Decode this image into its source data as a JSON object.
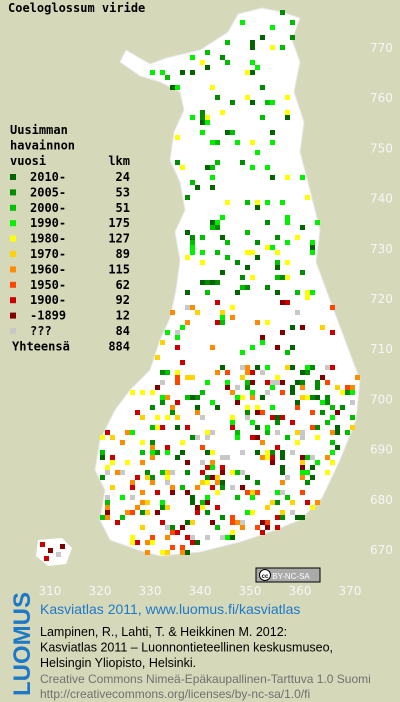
{
  "title": "Coeloglossum viride",
  "legend": {
    "heading": [
      "Uusimman",
      "havainnon",
      "vuosi"
    ],
    "count_heading": "lkm",
    "rows": [
      {
        "label": "2010-",
        "count": 24,
        "color": "#006400"
      },
      {
        "label": "2005-",
        "count": 53,
        "color": "#008c00"
      },
      {
        "label": "2000-",
        "count": 51,
        "color": "#00be00"
      },
      {
        "label": "1990-",
        "count": 175,
        "color": "#00f000"
      },
      {
        "label": "1980-",
        "count": 127,
        "color": "#ffff00"
      },
      {
        "label": "1970-",
        "count": 89,
        "color": "#ffd200"
      },
      {
        "label": "1960-",
        "count": 115,
        "color": "#ff8c00"
      },
      {
        "label": "1950-",
        "count": 62,
        "color": "#ff4600"
      },
      {
        "label": "1900-",
        "count": 92,
        "color": "#c80000"
      },
      {
        "label": "-1899",
        "count": 12,
        "color": "#800000"
      },
      {
        "label": "???",
        "count": 84,
        "color": "#c8c8c8"
      }
    ],
    "total_label": "Yhteensä",
    "total": 884
  },
  "axes": {
    "y_labels": [
      770,
      760,
      750,
      740,
      730,
      720,
      710,
      700,
      690,
      680,
      670
    ],
    "x_labels": [
      310,
      320,
      330,
      340,
      350,
      360,
      370
    ]
  },
  "badge": {
    "icon": "cc",
    "text": "BY-NC-SA"
  },
  "footer": {
    "logo": "LUOMUS",
    "headline": "Kasviatlas 2011, www.luomus.fi/kasviatlas",
    "citation": [
      "Lampinen, R., Lahti, T. & Heikkinen M. 2012:",
      "Kasviatlas 2011 – Luonnontieteellinen keskusmuseo,",
      "Helsingin Yliopisto, Helsinki."
    ],
    "license": [
      "Creative Commons Nimeä-Epäkaupallinen-Tarttuva 1.0 Suomi",
      "http://creativecommons.org/licenses/by-nc-sa/1.0/fi"
    ]
  }
}
